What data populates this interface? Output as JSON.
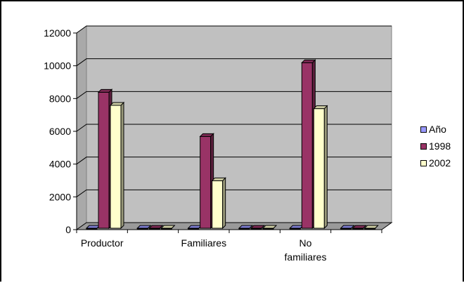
{
  "chart_data": {
    "type": "bar",
    "categories": [
      "Productor",
      "",
      "Familiares",
      "",
      "No familiares",
      ""
    ],
    "category_lines": [
      [
        "Productor"
      ],
      [
        ""
      ],
      [
        "Familiares"
      ],
      [
        ""
      ],
      [
        "No",
        "familiares"
      ],
      [
        ""
      ]
    ],
    "series": [
      {
        "name": "Año",
        "values": [
          0,
          0,
          0,
          0,
          0,
          0
        ],
        "color": "#9999ff"
      },
      {
        "name": "1998",
        "values": [
          8300,
          0,
          5600,
          0,
          10100,
          0
        ],
        "color": "#993366"
      },
      {
        "name": "2002",
        "values": [
          7500,
          0,
          2900,
          0,
          7300,
          0
        ],
        "color": "#ffffcc"
      }
    ],
    "ylim": [
      0,
      12000
    ],
    "yticks": [
      "0",
      "2000",
      "4000",
      "6000",
      "8000",
      "10000",
      "12000"
    ],
    "grid": true,
    "legend_position": "right",
    "plot_background": "#c0c0c0",
    "three_d": true
  }
}
